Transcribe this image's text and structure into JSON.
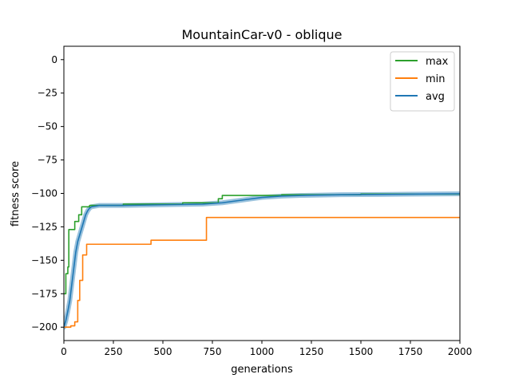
{
  "chart_data": {
    "type": "line",
    "title": "MountainCar-v0 - oblique",
    "xlabel": "generations",
    "ylabel": "fitness score",
    "xlim": [
      0,
      2000
    ],
    "ylim": [
      -210,
      10
    ],
    "xticks": [
      0,
      250,
      500,
      750,
      1000,
      1250,
      1500,
      1750,
      2000
    ],
    "yticks": [
      0,
      -25,
      -50,
      -75,
      -100,
      -125,
      -150,
      -175,
      -200
    ],
    "xtick_labels": [
      "0",
      "250",
      "500",
      "750",
      "1000",
      "1250",
      "1500",
      "1750",
      "2000"
    ],
    "ytick_labels": [
      "0",
      "−25",
      "−50",
      "−75",
      "−100",
      "−125",
      "−150",
      "−175",
      "−200"
    ],
    "grid": false,
    "legend": "upper-right",
    "series": [
      {
        "name": "max",
        "color": "#2ca02c",
        "step": true,
        "x": [
          0,
          10,
          20,
          25,
          55,
          75,
          90,
          130,
          300,
          600,
          780,
          800,
          1100,
          1500,
          2000
        ],
        "y": [
          -175,
          -160,
          -155,
          -127,
          -121,
          -116,
          -110,
          -109,
          -108,
          -107,
          -104,
          -101.5,
          -101,
          -100.5,
          -100.3
        ]
      },
      {
        "name": "min",
        "color": "#ff7f0e",
        "step": true,
        "x": [
          0,
          35,
          55,
          70,
          80,
          95,
          115,
          420,
          440,
          700,
          720,
          2000
        ],
        "y": [
          -200,
          -199,
          -196,
          -180,
          -165,
          -146,
          -138,
          -138,
          -135,
          -135,
          -118,
          -118
        ]
      },
      {
        "name": "avg",
        "color": "#1f77b4",
        "band_color": "#8fbbd9",
        "x": [
          0,
          10,
          20,
          30,
          40,
          50,
          60,
          70,
          80,
          90,
          100,
          110,
          120,
          130,
          140,
          160,
          180,
          200,
          300,
          500,
          700,
          800,
          900,
          1000,
          1100,
          1200,
          1400,
          1600,
          1800,
          2000
        ],
        "y": [
          -200,
          -195,
          -188,
          -180,
          -168,
          -156,
          -144,
          -136,
          -131,
          -126,
          -121,
          -116,
          -113,
          -111,
          -110,
          -109.5,
          -109,
          -109,
          -109,
          -108.5,
          -108,
          -107,
          -105,
          -103,
          -102,
          -101.5,
          -101,
          -100.8,
          -100.5,
          -100.3
        ]
      }
    ]
  }
}
